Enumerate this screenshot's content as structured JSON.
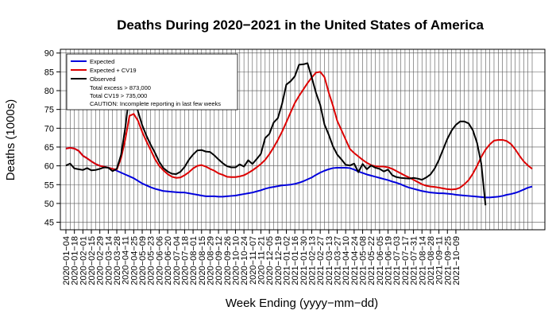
{
  "chart_data": {
    "type": "line",
    "title": "Deaths During 2020−2021 in the United States of America",
    "xlabel": "Week Ending (yyyy−mm−dd)",
    "ylabel": "Deaths (1000s)",
    "ylim": [
      43,
      91
    ],
    "yticks": [
      45,
      50,
      55,
      60,
      65,
      70,
      75,
      80,
      85,
      90
    ],
    "grid": true,
    "legend_position": "top-left",
    "x_tick_labels": [
      "2020−01−04",
      "2020−01−18",
      "2020−02−01",
      "2020−02−15",
      "2020−02−29",
      "2020−03−14",
      "2020−03−28",
      "2020−04−11",
      "2020−04−25",
      "2020−05−09",
      "2020−05−23",
      "2020−06−06",
      "2020−06−20",
      "2020−07−04",
      "2020−07−18",
      "2020−08−01",
      "2020−08−15",
      "2020−08−29",
      "2020−09−12",
      "2020−09−26",
      "2020−10−10",
      "2020−10−24",
      "2020−11−07",
      "2020−11−21",
      "2020−12−05",
      "2020−12−19",
      "2021−01−02",
      "2021−01−16",
      "2021−01−30",
      "2021−02−13",
      "2021−02−27",
      "2021−03−13",
      "2021−03−27",
      "2021−04−10",
      "2021−04−24",
      "2021−05−08",
      "2021−05−22",
      "2021−06−05",
      "2021−06−19",
      "2021−07−03",
      "2021−07−17",
      "2021−07−31",
      "2021−08−14",
      "2021−08−28",
      "2021−09−11",
      "2021−09−25",
      "2021−10−09"
    ],
    "series": [
      {
        "name": "Expected",
        "color": "#0000dd",
        "values": [
          64.6,
          64.8,
          64.6,
          64.0,
          62.7,
          62.0,
          61.2,
          60.5,
          60.0,
          59.8,
          59.5,
          59.2,
          58.7,
          58.2,
          57.7,
          57.2,
          56.7,
          56.0,
          55.3,
          54.8,
          54.3,
          53.9,
          53.6,
          53.3,
          53.2,
          53.1,
          53.0,
          52.9,
          52.9,
          52.7,
          52.5,
          52.3,
          52.1,
          51.9,
          51.9,
          51.9,
          51.8,
          51.8,
          51.9,
          52.0,
          52.1,
          52.3,
          52.5,
          52.7,
          52.9,
          53.2,
          53.5,
          53.9,
          54.2,
          54.4,
          54.6,
          54.8,
          54.9,
          55.0,
          55.2,
          55.5,
          55.9,
          56.4,
          56.9,
          57.6,
          58.2,
          58.7,
          59.1,
          59.4,
          59.5,
          59.5,
          59.5,
          59.4,
          59.0,
          58.5,
          58.1,
          57.7,
          57.4,
          57.1,
          56.8,
          56.5,
          56.2,
          55.8,
          55.5,
          55.1,
          54.6,
          54.2,
          53.9,
          53.6,
          53.3,
          53.1,
          52.9,
          52.8,
          52.7,
          52.7,
          52.6,
          52.5,
          52.3,
          52.2,
          52.1,
          52.0,
          51.9,
          51.8,
          51.7,
          51.6,
          51.6,
          51.7,
          51.8,
          52.0,
          52.3,
          52.5,
          52.8,
          53.2,
          53.7,
          54.2,
          54.5
        ]
      },
      {
        "name": "Expected + CV19",
        "color": "#dd0000",
        "values": [
          64.6,
          64.8,
          64.6,
          64.0,
          62.7,
          62.0,
          61.2,
          60.5,
          60.0,
          59.8,
          59.5,
          59.2,
          59.0,
          62.0,
          67.0,
          73.3,
          73.8,
          72.0,
          69.0,
          66.5,
          64.2,
          61.8,
          60.0,
          58.8,
          57.8,
          57.1,
          56.8,
          56.9,
          57.5,
          58.3,
          59.3,
          60.0,
          60.2,
          59.8,
          59.2,
          58.7,
          58.0,
          57.6,
          57.1,
          57.0,
          57.0,
          57.2,
          57.5,
          58.1,
          58.8,
          59.6,
          60.5,
          61.6,
          63.1,
          64.9,
          66.9,
          69.1,
          71.6,
          74.2,
          76.7,
          78.6,
          80.3,
          82.0,
          83.5,
          84.8,
          85.0,
          83.6,
          79.5,
          76.0,
          72.0,
          69.5,
          67.0,
          64.5,
          63.4,
          62.5,
          61.6,
          60.8,
          60.2,
          59.9,
          59.8,
          59.8,
          59.6,
          59.2,
          58.6,
          58.0,
          57.4,
          56.9,
          56.3,
          55.7,
          55.1,
          54.7,
          54.5,
          54.4,
          54.2,
          54.0,
          53.8,
          53.7,
          53.8,
          54.2,
          55.1,
          56.2,
          57.9,
          60.0,
          62.4,
          64.3,
          65.7,
          66.7,
          66.9,
          66.9,
          66.6,
          65.8,
          64.4,
          62.7,
          61.2,
          60.1,
          59.2
        ]
      },
      {
        "name": "Observed",
        "color": "#000000",
        "values": [
          60.1,
          60.6,
          59.3,
          59.1,
          58.9,
          59.4,
          58.8,
          58.9,
          59.2,
          59.6,
          59.5,
          58.6,
          59.2,
          62.9,
          70.1,
          79.5,
          78.9,
          74.5,
          70.8,
          68.0,
          65.6,
          63.5,
          61.1,
          59.4,
          58.5,
          57.9,
          57.8,
          58.4,
          59.7,
          61.6,
          63.0,
          64.1,
          64.2,
          63.8,
          63.7,
          62.8,
          61.7,
          60.7,
          59.9,
          59.6,
          59.6,
          60.4,
          59.8,
          61.5,
          60.5,
          61.8,
          63.2,
          67.4,
          68.5,
          71.5,
          72.7,
          76.5,
          81.6,
          82.5,
          83.8,
          86.9,
          87.0,
          87.3,
          83.5,
          79.4,
          76.2,
          71.0,
          68.3,
          65.2,
          63.0,
          61.7,
          60.3,
          60.1,
          60.6,
          58.3,
          60.5,
          59.1,
          60.1,
          59.5,
          59.2,
          58.5,
          59.0,
          57.5,
          57.0,
          56.8,
          56.7,
          56.6,
          56.8,
          56.6,
          56.3,
          56.9,
          57.7,
          59.3,
          61.6,
          64.4,
          67.2,
          69.4,
          70.9,
          71.8,
          71.8,
          71.3,
          69.5,
          66.1,
          60.5,
          49.5
        ]
      }
    ],
    "legend_notes": [
      "Total excess > 873,000",
      "Total CV19 > 735,000",
      "CAUTION: Incomplete reporting in last few weeks"
    ]
  }
}
